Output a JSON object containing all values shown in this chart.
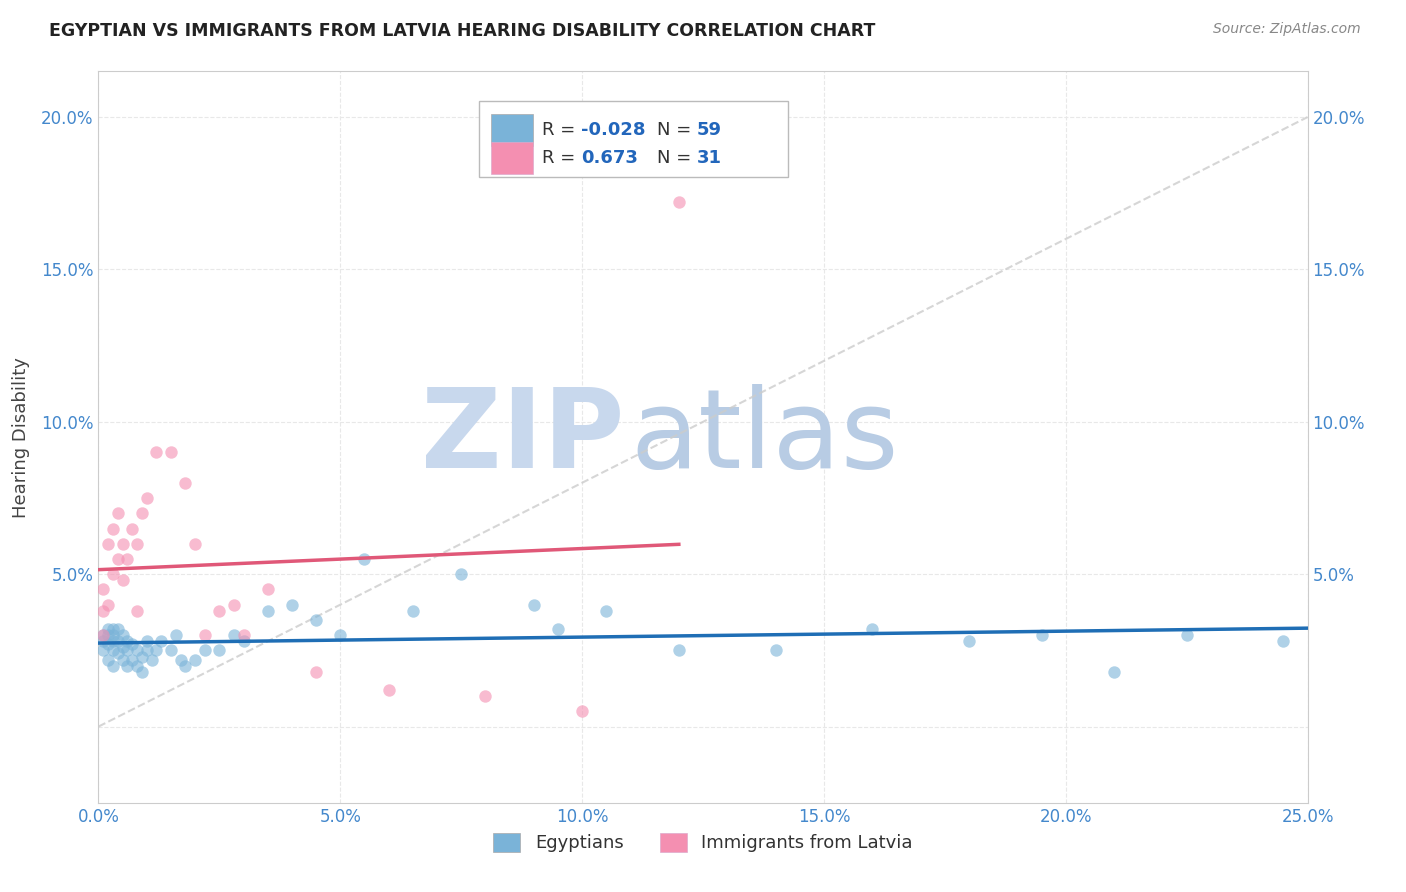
{
  "title": "EGYPTIAN VS IMMIGRANTS FROM LATVIA HEARING DISABILITY CORRELATION CHART",
  "source": "Source: ZipAtlas.com",
  "ylabel": "Hearing Disability",
  "xlim": [
    0.0,
    0.25
  ],
  "ylim": [
    -0.025,
    0.215
  ],
  "xticks": [
    0.0,
    0.05,
    0.1,
    0.15,
    0.2,
    0.25
  ],
  "yticks": [
    0.0,
    0.05,
    0.1,
    0.15,
    0.2
  ],
  "xticklabels": [
    "0.0%",
    "5.0%",
    "10.0%",
    "15.0%",
    "20.0%",
    "25.0%"
  ],
  "yticklabels": [
    "",
    "5.0%",
    "10.0%",
    "15.0%",
    "20.0%"
  ],
  "right_yticklabels": [
    "",
    "5.0%",
    "10.0%",
    "15.0%",
    "20.0%"
  ],
  "egyptian_R": -0.028,
  "egyptian_N": 59,
  "latvia_R": 0.673,
  "latvia_N": 31,
  "legend_labels": [
    "Egyptians",
    "Immigrants from Latvia"
  ],
  "blue_dot_color": "#7ab3d8",
  "pink_dot_color": "#f48fb1",
  "blue_line_color": "#1f6eb5",
  "pink_line_color": "#e05878",
  "diag_color": "#cccccc",
  "watermark_zip_color": "#c8d8ed",
  "watermark_atlas_color": "#b8cce4",
  "background_color": "#ffffff",
  "grid_color": "#e8e8e8",
  "tick_color": "#4488cc",
  "title_color": "#222222",
  "source_color": "#888888",
  "legend_r_color": "#2266bb",
  "legend_n_color": "#2266bb",
  "eg_x": [
    0.001,
    0.001,
    0.001,
    0.002,
    0.002,
    0.002,
    0.002,
    0.003,
    0.003,
    0.003,
    0.003,
    0.003,
    0.004,
    0.004,
    0.004,
    0.005,
    0.005,
    0.005,
    0.006,
    0.006,
    0.006,
    0.007,
    0.007,
    0.008,
    0.008,
    0.009,
    0.009,
    0.01,
    0.01,
    0.011,
    0.012,
    0.013,
    0.015,
    0.016,
    0.017,
    0.018,
    0.02,
    0.022,
    0.025,
    0.028,
    0.03,
    0.035,
    0.04,
    0.045,
    0.05,
    0.055,
    0.065,
    0.075,
    0.09,
    0.095,
    0.105,
    0.12,
    0.14,
    0.16,
    0.18,
    0.195,
    0.21,
    0.225,
    0.245
  ],
  "eg_y": [
    0.028,
    0.03,
    0.025,
    0.027,
    0.03,
    0.032,
    0.022,
    0.025,
    0.028,
    0.03,
    0.032,
    0.02,
    0.024,
    0.028,
    0.032,
    0.022,
    0.026,
    0.03,
    0.02,
    0.025,
    0.028,
    0.022,
    0.027,
    0.02,
    0.025,
    0.018,
    0.023,
    0.025,
    0.028,
    0.022,
    0.025,
    0.028,
    0.025,
    0.03,
    0.022,
    0.02,
    0.022,
    0.025,
    0.025,
    0.03,
    0.028,
    0.038,
    0.04,
    0.035,
    0.03,
    0.055,
    0.038,
    0.05,
    0.04,
    0.032,
    0.038,
    0.025,
    0.025,
    0.032,
    0.028,
    0.03,
    0.018,
    0.03,
    0.028
  ],
  "lv_x": [
    0.001,
    0.001,
    0.001,
    0.002,
    0.002,
    0.003,
    0.003,
    0.004,
    0.004,
    0.005,
    0.005,
    0.006,
    0.007,
    0.008,
    0.008,
    0.009,
    0.01,
    0.012,
    0.015,
    0.018,
    0.02,
    0.022,
    0.025,
    0.028,
    0.03,
    0.035,
    0.045,
    0.06,
    0.08,
    0.1,
    0.12
  ],
  "lv_y": [
    0.03,
    0.038,
    0.045,
    0.04,
    0.06,
    0.05,
    0.065,
    0.055,
    0.07,
    0.048,
    0.06,
    0.055,
    0.065,
    0.038,
    0.06,
    0.07,
    0.075,
    0.09,
    0.09,
    0.08,
    0.06,
    0.03,
    0.038,
    0.04,
    0.03,
    0.045,
    0.018,
    0.012,
    0.01,
    0.005,
    0.172
  ]
}
